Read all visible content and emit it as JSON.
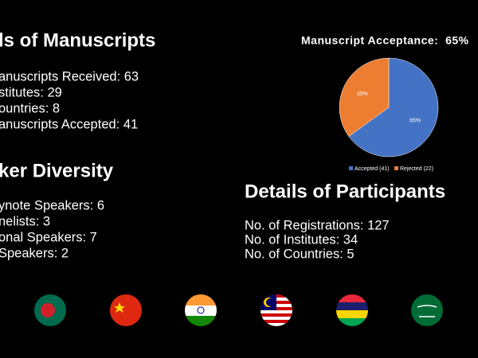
{
  "sections": [
    {
      "title": "ls of Manuscripts",
      "items": [
        "anuscripts Received: 63",
        "stitutes: 29",
        "ountries: 8",
        "anuscripts Accepted: 41"
      ]
    },
    {
      "title": "ker Diversity",
      "items": [
        "ynote Speakers: 6",
        "nelists: 3",
        "onal Speakers: 7",
        "Speakers: 2"
      ]
    },
    {
      "title": "Details of Participants",
      "items": [
        "No. of Registrations: 127",
        "No. of Institutes: 34",
        "No. of Countries: 5"
      ]
    }
  ],
  "chart_data": {
    "type": "pie",
    "title": "Manuscript Acceptance:  65%",
    "categories": [
      "Accepted (41)",
      "Rejected (22)"
    ],
    "values": [
      65,
      35
    ],
    "value_labels": [
      "65%",
      "35%"
    ],
    "colors": [
      "#4472c4",
      "#ed7d31"
    ]
  }
}
